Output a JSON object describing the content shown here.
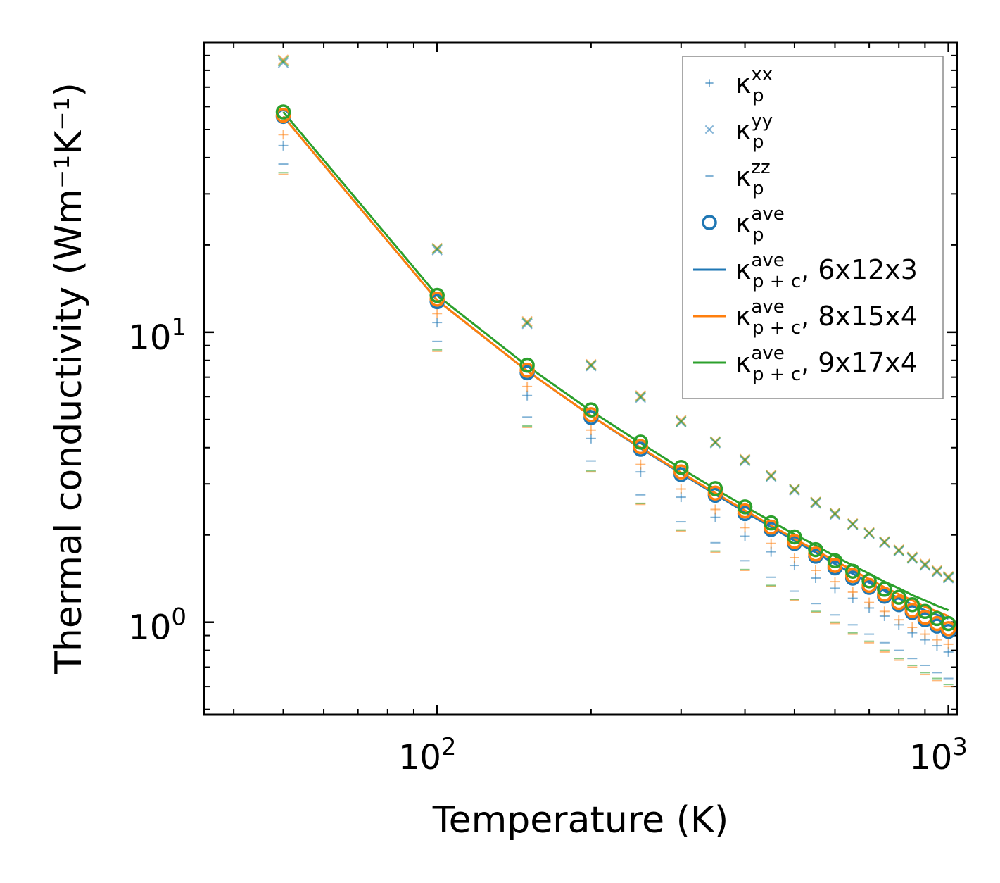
{
  "chart_data": {
    "type": "scatter",
    "title": "",
    "xlabel": "Temperature (K)",
    "ylabel": "Thermal conductivity (Wm⁻¹K⁻¹)",
    "xscale": "log",
    "yscale": "log",
    "xlim": [
      35,
      1040
    ],
    "ylim": [
      0.48,
      100
    ],
    "x_ticks": [
      {
        "base": "10",
        "exp": "2"
      },
      {
        "base": "10",
        "exp": "3"
      }
    ],
    "y_ticks": [
      {
        "base": "10",
        "exp": "0"
      },
      {
        "base": "10",
        "exp": "1"
      }
    ],
    "legend_position": "top-right",
    "x": [
      50,
      100,
      150,
      200,
      250,
      300,
      350,
      400,
      450,
      500,
      550,
      600,
      650,
      700,
      750,
      800,
      850,
      900,
      950,
      1000
    ],
    "series": [
      {
        "name": "κ_p^xx 6x12x3",
        "marker": "plus",
        "color": "#1f77b4",
        "values": [
          44,
          10.8,
          6.05,
          4.3,
          3.3,
          2.7,
          2.3,
          1.98,
          1.75,
          1.57,
          1.42,
          1.31,
          1.21,
          1.12,
          1.05,
          0.98,
          0.92,
          0.87,
          0.83,
          0.79
        ]
      },
      {
        "name": "κ_p^xx 8x15x4",
        "marker": "plus",
        "color": "#ff7f0e",
        "values": [
          48,
          11.6,
          6.5,
          4.6,
          3.5,
          2.88,
          2.45,
          2.12,
          1.87,
          1.67,
          1.51,
          1.38,
          1.27,
          1.17,
          1.09,
          1.02,
          0.96,
          0.91,
          0.87,
          0.84
        ]
      },
      {
        "name": "κ_p^yy 6x12x3",
        "marker": "x",
        "color": "#1f77b4",
        "values": [
          85,
          19.2,
          10.7,
          7.65,
          5.95,
          4.9,
          4.15,
          3.6,
          3.18,
          2.85,
          2.57,
          2.35,
          2.17,
          2.02,
          1.88,
          1.76,
          1.66,
          1.57,
          1.49,
          1.42
        ]
      },
      {
        "name": "κ_p^yy 8x15x4",
        "marker": "x",
        "color": "#ff7f0e",
        "values": [
          87,
          19.5,
          10.9,
          7.75,
          6.05,
          4.97,
          4.2,
          3.65,
          3.22,
          2.88,
          2.6,
          2.38,
          2.19,
          2.04,
          1.9,
          1.78,
          1.68,
          1.59,
          1.51,
          1.44
        ]
      },
      {
        "name": "κ_p^yy 9x17x4",
        "marker": "x",
        "color": "#2ca02c",
        "values": [
          86,
          19.4,
          10.8,
          7.7,
          6.0,
          4.93,
          4.18,
          3.63,
          3.2,
          2.87,
          2.59,
          2.37,
          2.18,
          2.03,
          1.89,
          1.77,
          1.67,
          1.58,
          1.5,
          1.43
        ]
      },
      {
        "name": "κ_p^zz 6x12x3",
        "marker": "dash",
        "color": "#1f77b4",
        "values": [
          38,
          9.3,
          5.1,
          3.6,
          2.75,
          2.22,
          1.88,
          1.63,
          1.43,
          1.28,
          1.16,
          1.06,
          0.98,
          0.91,
          0.85,
          0.8,
          0.75,
          0.71,
          0.67,
          0.64
        ]
      },
      {
        "name": "κ_p^zz 8x15x4",
        "marker": "dash",
        "color": "#ff7f0e",
        "values": [
          35,
          8.6,
          4.7,
          3.3,
          2.55,
          2.06,
          1.74,
          1.51,
          1.33,
          1.19,
          1.08,
          0.99,
          0.91,
          0.85,
          0.79,
          0.74,
          0.7,
          0.66,
          0.63,
          0.6
        ]
      },
      {
        "name": "κ_p^zz 9x17x4",
        "marker": "dash",
        "color": "#2ca02c",
        "values": [
          35.5,
          8.7,
          4.75,
          3.33,
          2.57,
          2.08,
          1.76,
          1.52,
          1.34,
          1.2,
          1.09,
          1.0,
          0.92,
          0.86,
          0.8,
          0.75,
          0.71,
          0.67,
          0.64,
          0.61
        ]
      },
      {
        "name": "κ_p^ave 6x12x3",
        "marker": "circle",
        "color": "#1f77b4",
        "values": [
          55.5,
          12.75,
          7.25,
          5.08,
          3.95,
          3.23,
          2.74,
          2.37,
          2.09,
          1.87,
          1.69,
          1.54,
          1.42,
          1.32,
          1.23,
          1.15,
          1.08,
          1.02,
          0.97,
          0.93
        ]
      },
      {
        "name": "κ_p^ave 8x15x4",
        "marker": "circle",
        "color": "#ff7f0e",
        "values": [
          56,
          13.0,
          7.4,
          5.2,
          4.03,
          3.3,
          2.79,
          2.42,
          2.13,
          1.9,
          1.72,
          1.57,
          1.45,
          1.34,
          1.25,
          1.17,
          1.1,
          1.04,
          0.99,
          0.95
        ]
      },
      {
        "name": "κ_p^ave 9x17x4",
        "marker": "circle",
        "color": "#2ca02c",
        "values": [
          57.5,
          13.4,
          7.7,
          5.4,
          4.18,
          3.42,
          2.89,
          2.5,
          2.2,
          1.97,
          1.78,
          1.63,
          1.5,
          1.39,
          1.3,
          1.22,
          1.15,
          1.09,
          1.03,
          0.99
        ]
      },
      {
        "name": "κ_{p+c}^ave, 6x12x3",
        "marker": "line",
        "color": "#1f77b4",
        "values": [
          55.5,
          12.9,
          7.35,
          5.15,
          3.98,
          3.26,
          2.76,
          2.4,
          2.13,
          1.91,
          1.74,
          1.59,
          1.47,
          1.37,
          1.28,
          1.21,
          1.15,
          1.1,
          1.06,
          1.03
        ]
      },
      {
        "name": "κ_{p+c}^ave, 8x15x4",
        "marker": "line",
        "color": "#ff7f0e",
        "values": [
          55.5,
          12.9,
          7.35,
          5.15,
          4.0,
          3.28,
          2.79,
          2.43,
          2.16,
          1.94,
          1.77,
          1.63,
          1.51,
          1.41,
          1.32,
          1.25,
          1.19,
          1.13,
          1.09,
          1.05
        ]
      },
      {
        "name": "κ_{p+c}^ave, 9x17x4",
        "marker": "line",
        "color": "#2ca02c",
        "values": [
          57.5,
          13.4,
          7.65,
          5.35,
          4.15,
          3.39,
          2.88,
          2.51,
          2.23,
          2.01,
          1.84,
          1.69,
          1.57,
          1.47,
          1.38,
          1.31,
          1.24,
          1.19,
          1.14,
          1.1
        ]
      }
    ],
    "legend": [
      {
        "marker": "plus",
        "color": "#1f77b4",
        "label": "κ",
        "sub": "p",
        "sup": "xx",
        "suffix": ""
      },
      {
        "marker": "x",
        "color": "#1f77b4",
        "label": "κ",
        "sub": "p",
        "sup": "yy",
        "suffix": ""
      },
      {
        "marker": "dash",
        "color": "#1f77b4",
        "label": "κ",
        "sub": "p",
        "sup": "zz",
        "suffix": ""
      },
      {
        "marker": "circle",
        "color": "#1f77b4",
        "label": "κ",
        "sub": "p",
        "sup": "ave",
        "suffix": ""
      },
      {
        "marker": "line",
        "color": "#1f77b4",
        "label": "κ",
        "sub": "p + c",
        "sup": "ave",
        "suffix": ", 6x12x3"
      },
      {
        "marker": "line",
        "color": "#ff7f0e",
        "label": "κ",
        "sub": "p + c",
        "sup": "ave",
        "suffix": ", 8x15x4"
      },
      {
        "marker": "line",
        "color": "#2ca02c",
        "label": "κ",
        "sub": "p + c",
        "sup": "ave",
        "suffix": ", 9x17x4"
      }
    ]
  }
}
